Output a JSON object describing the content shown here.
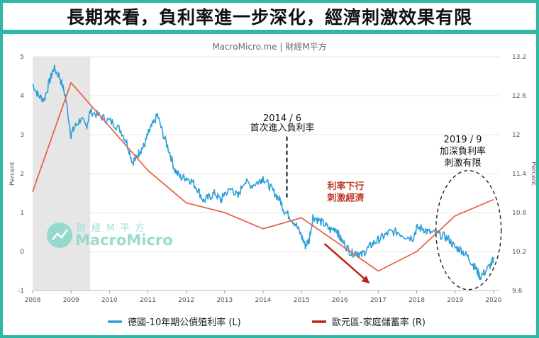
{
  "header": {
    "title": "長期來看，負利率進一步深化，經濟刺激效果有限"
  },
  "chart_data": {
    "type": "line",
    "subtitle": "MacroMicro.me | 財經M平方",
    "watermark": {
      "cn": "財 經 M 平 方",
      "en": "MacroMicro"
    },
    "x_ticks": [
      "2008",
      "2009",
      "2010",
      "2011",
      "2012",
      "2013",
      "2014",
      "2015",
      "2016",
      "2017",
      "2018",
      "2019",
      "2020"
    ],
    "xlim": [
      2008.0,
      2020.15
    ],
    "left_axis": {
      "label": "Percent",
      "ticks": [
        "5",
        "4",
        "3",
        "2",
        "1",
        "0",
        "-1"
      ],
      "ylim": [
        -1,
        5
      ]
    },
    "right_axis": {
      "label": "Percent",
      "ticks": [
        "13.2",
        "12.6",
        "12",
        "11.4",
        "10.8",
        "10.2",
        "9.6"
      ],
      "ylim": [
        9.6,
        13.2
      ]
    },
    "shaded_region": [
      2008.0,
      2009.5
    ],
    "series": [
      {
        "name": "德國-10年期公債殖利率 (L)",
        "axis": "left",
        "color": "#2e9fd8",
        "x": [
          2008.0,
          2008.15,
          2008.3,
          2008.45,
          2008.55,
          2008.7,
          2008.85,
          2009.0,
          2009.1,
          2009.25,
          2009.4,
          2009.5,
          2009.7,
          2009.9,
          2010.1,
          2010.3,
          2010.45,
          2010.6,
          2010.7,
          2010.8,
          2010.9,
          2011.0,
          2011.1,
          2011.25,
          2011.4,
          2011.55,
          2011.7,
          2011.85,
          2012.0,
          2012.15,
          2012.3,
          2012.45,
          2012.6,
          2012.75,
          2012.9,
          2013.0,
          2013.2,
          2013.35,
          2013.5,
          2013.7,
          2013.9,
          2014.0,
          2014.15,
          2014.3,
          2014.45,
          2014.55,
          2014.7,
          2014.85,
          2015.0,
          2015.1,
          2015.2,
          2015.3,
          2015.45,
          2015.6,
          2015.75,
          2015.9,
          2016.0,
          2016.15,
          2016.3,
          2016.45,
          2016.55,
          2016.7,
          2016.85,
          2017.0,
          2017.15,
          2017.3,
          2017.5,
          2017.7,
          2017.9,
          2018.0,
          2018.15,
          2018.3,
          2018.5,
          2018.7,
          2018.85,
          2019.0,
          2019.15,
          2019.3,
          2019.45,
          2019.55,
          2019.65,
          2019.8,
          2019.95,
          2020.0
        ],
        "y": [
          4.3,
          4.0,
          3.9,
          4.4,
          4.7,
          4.5,
          4.0,
          3.0,
          3.2,
          3.4,
          3.2,
          3.6,
          3.5,
          3.4,
          3.3,
          3.1,
          2.8,
          2.3,
          2.4,
          2.6,
          2.7,
          3.0,
          3.2,
          3.5,
          3.0,
          2.6,
          2.1,
          1.9,
          1.9,
          1.8,
          1.6,
          1.3,
          1.4,
          1.5,
          1.3,
          1.5,
          1.6,
          1.4,
          1.8,
          1.7,
          1.8,
          1.9,
          1.7,
          1.5,
          1.3,
          1.05,
          0.9,
          0.7,
          0.4,
          0.15,
          0.3,
          0.9,
          0.8,
          0.7,
          0.55,
          0.6,
          0.35,
          0.15,
          -0.05,
          0.0,
          -0.1,
          0.05,
          0.2,
          0.3,
          0.4,
          0.5,
          0.5,
          0.4,
          0.35,
          0.6,
          0.6,
          0.5,
          0.45,
          0.4,
          0.3,
          0.1,
          0.05,
          -0.1,
          -0.3,
          -0.45,
          -0.65,
          -0.5,
          -0.3,
          -0.2
        ]
      },
      {
        "name": "歐元區-家庭儲蓄率 (R)",
        "axis": "right",
        "color": "#e8654a",
        "x": [
          2008.0,
          2009.0,
          2011.0,
          2012.0,
          2013.0,
          2014.0,
          2015.0,
          2017.0,
          2018.0,
          2019.0,
          2020.0
        ],
        "y": [
          11.12,
          12.8,
          11.45,
          10.95,
          10.8,
          10.55,
          10.72,
          9.9,
          10.2,
          10.75,
          11.0
        ]
      }
    ],
    "annotations": [
      {
        "text": "2014 / 6",
        "x": 2014.5,
        "y": 3.35
      },
      {
        "text": "首次進入負利率",
        "x": 2014.5,
        "y": 3.1
      },
      {
        "text": "利率下行",
        "x": 2016.15,
        "y": 1.6,
        "color": "#c0392b"
      },
      {
        "text": "刺激經濟",
        "x": 2016.15,
        "y": 1.3,
        "color": "#c0392b"
      },
      {
        "text": "2019 / 9",
        "x": 2019.2,
        "y": 2.8
      },
      {
        "text": "加深負利率",
        "x": 2019.2,
        "y": 2.5
      },
      {
        "text": "刺激有限",
        "x": 2019.2,
        "y": 2.2
      }
    ],
    "legend": [
      {
        "label": "德國-10年期公債殖利率 (L)",
        "color": "#2e9fd8"
      },
      {
        "label": "歐元區-家庭儲蓄率 (R)",
        "color": "#c0231b"
      }
    ]
  }
}
